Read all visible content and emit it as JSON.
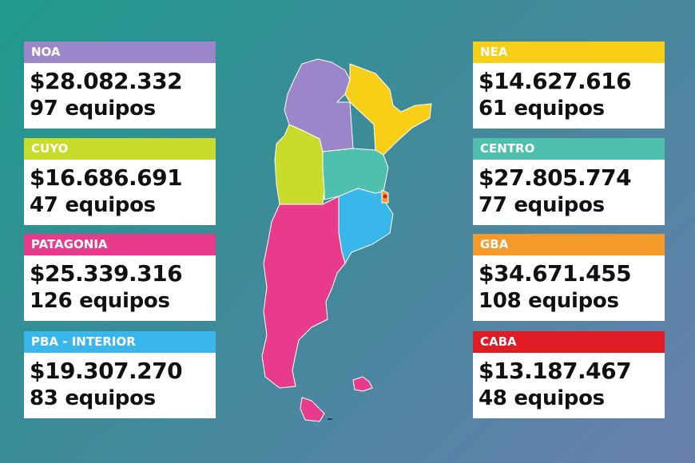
{
  "regions": [
    {
      "id": "noa",
      "name": "NOA",
      "amount": "$28.082.332",
      "teams": "97 equipos",
      "color": "#9a86c8"
    },
    {
      "id": "cuyo",
      "name": "CUYO",
      "amount": "$16.686.691",
      "teams": "47 equipos",
      "color": "#c9dc2c"
    },
    {
      "id": "patagonia",
      "name": "PATAGONIA",
      "amount": "$25.339.316",
      "teams": "126 equipos",
      "color": "#e93b8c"
    },
    {
      "id": "pba-interior",
      "name": "PBA - INTERIOR",
      "amount": "$19.307.270",
      "teams": "83 equipos",
      "color": "#3ab7ea"
    },
    {
      "id": "nea",
      "name": "NEA",
      "amount": "$14.627.616",
      "teams": "61 equipos",
      "color": "#f6cf16"
    },
    {
      "id": "centro",
      "name": "CENTRO",
      "amount": "$27.805.774",
      "teams": "77 equipos",
      "color": "#4fbfae"
    },
    {
      "id": "gba",
      "name": "GBA",
      "amount": "$34.671.455",
      "teams": "108 equipos",
      "color": "#f39a2a"
    },
    {
      "id": "caba",
      "name": "CABA",
      "amount": "$13.187.467",
      "teams": "48 equipos",
      "color": "#e01b24"
    }
  ]
}
